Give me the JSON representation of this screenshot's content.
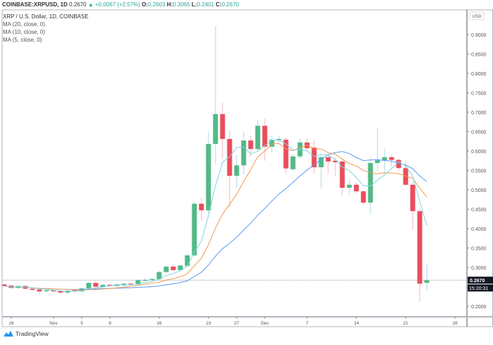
{
  "header": {
    "symbol": "COINBASE:XRPUSD, 1D",
    "last": "0.2670",
    "arrow": "▲",
    "change": "+0.0067 (+2.57%)",
    "o_label": "O:",
    "o": "0.2603",
    "h_label": "H:",
    "h": "0.3065",
    "l_label": "L:",
    "l": "0.2401",
    "c_label": "C:",
    "c": "0.2670"
  },
  "legend": [
    "XRP / U.S. Dollar, 1D, COINBASE",
    "MA (20, close, 0)",
    "MA (10, close, 0)",
    "MA (5, close, 0)"
  ],
  "currency": "USD",
  "last_price_label": "0.2670",
  "countdown": "15:20:31",
  "brand": "TradingView",
  "colors": {
    "up": "#53b987",
    "down": "#eb4d5c",
    "ma20": "#5b9cf6",
    "ma10": "#f19a50",
    "ma5": "#7ed4df"
  },
  "chart_data": {
    "type": "candlestick",
    "title": "XRP / U.S. Dollar, 1D, COINBASE",
    "ylim": [
      0.18,
      0.93
    ],
    "yticks": [
      "0.9000",
      "0.8500",
      "0.8000",
      "0.7500",
      "0.7000",
      "0.6500",
      "0.6000",
      "0.5500",
      "0.5000",
      "0.4500",
      "0.4000",
      "0.3500",
      "0.3000",
      "0.2000"
    ],
    "xticks": [
      {
        "day": 1,
        "label": "26"
      },
      {
        "day": 7,
        "label": "Nov"
      },
      {
        "day": 11,
        "label": "5"
      },
      {
        "day": 15,
        "label": "9"
      },
      {
        "day": 22,
        "label": "16"
      },
      {
        "day": 29,
        "label": "23"
      },
      {
        "day": 33,
        "label": "27"
      },
      {
        "day": 37,
        "label": "Dec"
      },
      {
        "day": 43,
        "label": "7"
      },
      {
        "day": 50,
        "label": "14"
      },
      {
        "day": 57,
        "label": "21"
      },
      {
        "day": 64,
        "label": "28"
      }
    ],
    "ma_periods": [
      20,
      10,
      5
    ],
    "ohlc": [
      [
        0.256,
        0.258,
        0.25,
        0.252
      ],
      [
        0.253,
        0.256,
        0.245,
        0.247
      ],
      [
        0.247,
        0.254,
        0.245,
        0.252
      ],
      [
        0.252,
        0.255,
        0.243,
        0.245
      ],
      [
        0.245,
        0.248,
        0.24,
        0.242
      ],
      [
        0.243,
        0.246,
        0.232,
        0.238
      ],
      [
        0.24,
        0.243,
        0.237,
        0.241
      ],
      [
        0.241,
        0.243,
        0.238,
        0.24
      ],
      [
        0.24,
        0.242,
        0.232,
        0.235
      ],
      [
        0.235,
        0.242,
        0.231,
        0.24
      ],
      [
        0.241,
        0.244,
        0.236,
        0.238
      ],
      [
        0.238,
        0.248,
        0.236,
        0.246
      ],
      [
        0.246,
        0.262,
        0.244,
        0.26
      ],
      [
        0.26,
        0.266,
        0.248,
        0.25
      ],
      [
        0.25,
        0.257,
        0.247,
        0.255
      ],
      [
        0.255,
        0.258,
        0.25,
        0.252
      ],
      [
        0.252,
        0.259,
        0.25,
        0.256
      ],
      [
        0.255,
        0.26,
        0.253,
        0.258
      ],
      [
        0.258,
        0.26,
        0.254,
        0.256
      ],
      [
        0.256,
        0.269,
        0.254,
        0.267
      ],
      [
        0.266,
        0.272,
        0.264,
        0.268
      ],
      [
        0.268,
        0.272,
        0.266,
        0.27
      ],
      [
        0.27,
        0.291,
        0.268,
        0.288
      ],
      [
        0.288,
        0.305,
        0.285,
        0.302
      ],
      [
        0.302,
        0.308,
        0.29,
        0.293
      ],
      [
        0.293,
        0.308,
        0.29,
        0.305
      ],
      [
        0.304,
        0.334,
        0.3,
        0.331
      ],
      [
        0.331,
        0.47,
        0.328,
        0.464
      ],
      [
        0.464,
        0.48,
        0.42,
        0.447
      ],
      [
        0.447,
        0.649,
        0.44,
        0.618
      ],
      [
        0.618,
        0.922,
        0.565,
        0.695
      ],
      [
        0.695,
        0.724,
        0.58,
        0.631
      ],
      [
        0.631,
        0.653,
        0.456,
        0.536
      ],
      [
        0.536,
        0.589,
        0.504,
        0.563
      ],
      [
        0.563,
        0.649,
        0.54,
        0.627
      ],
      [
        0.627,
        0.64,
        0.585,
        0.605
      ],
      [
        0.605,
        0.68,
        0.6,
        0.665
      ],
      [
        0.665,
        0.684,
        0.575,
        0.611
      ],
      [
        0.611,
        0.64,
        0.595,
        0.629
      ],
      [
        0.629,
        0.64,
        0.62,
        0.631
      ],
      [
        0.629,
        0.635,
        0.542,
        0.555
      ],
      [
        0.553,
        0.592,
        0.548,
        0.586
      ],
      [
        0.586,
        0.632,
        0.58,
        0.622
      ],
      [
        0.622,
        0.632,
        0.6,
        0.607
      ],
      [
        0.609,
        0.628,
        0.542,
        0.558
      ],
      [
        0.558,
        0.592,
        0.504,
        0.584
      ],
      [
        0.584,
        0.59,
        0.542,
        0.573
      ],
      [
        0.575,
        0.582,
        0.535,
        0.571
      ],
      [
        0.573,
        0.578,
        0.486,
        0.505
      ],
      [
        0.505,
        0.526,
        0.486,
        0.513
      ],
      [
        0.513,
        0.52,
        0.49,
        0.496
      ],
      [
        0.496,
        0.5,
        0.462,
        0.467
      ],
      [
        0.467,
        0.582,
        0.436,
        0.569
      ],
      [
        0.569,
        0.66,
        0.548,
        0.576
      ],
      [
        0.576,
        0.606,
        0.542,
        0.584
      ],
      [
        0.584,
        0.59,
        0.56,
        0.577
      ],
      [
        0.577,
        0.58,
        0.548,
        0.556
      ],
      [
        0.556,
        0.576,
        0.51,
        0.513
      ],
      [
        0.513,
        0.52,
        0.398,
        0.445
      ],
      [
        0.445,
        0.45,
        0.212,
        0.258
      ],
      [
        0.2603,
        0.3065,
        0.2401,
        0.267
      ]
    ]
  }
}
